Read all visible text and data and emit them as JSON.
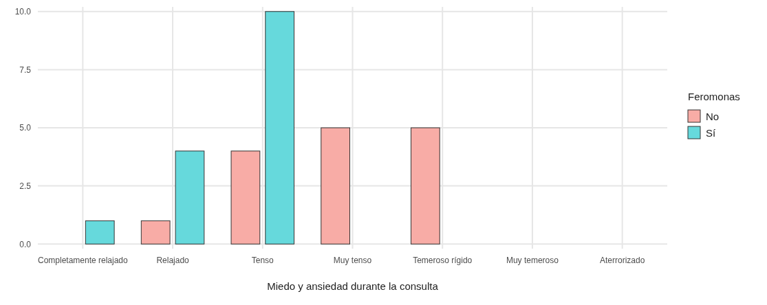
{
  "chart_data": {
    "type": "bar",
    "xlabel": "Miedo y ansiedad durante la consulta",
    "legend_title": "Feromonas",
    "legend": "right",
    "grid": true,
    "categories": [
      "Completamente relajado",
      "Relajado",
      "Tenso",
      "Muy tenso",
      "Temeroso rígido",
      "Muy temeroso",
      "Aterrorizado"
    ],
    "ylim": [
      -0.2,
      10.2
    ],
    "yticks": [
      {
        "value": 0,
        "label": "0.0"
      },
      {
        "value": 2.5,
        "label": "2.5"
      },
      {
        "value": 5,
        "label": "5.0"
      },
      {
        "value": 7.5,
        "label": "7.5"
      },
      {
        "value": 10,
        "label": "10.0"
      }
    ],
    "series": [
      {
        "name": "No",
        "color": "#f8aca6",
        "values": [
          0,
          1,
          4,
          5,
          5,
          0,
          0
        ]
      },
      {
        "name": "Sí",
        "color": "#66d9dc",
        "values": [
          1,
          4,
          10,
          0,
          0,
          0,
          0
        ]
      }
    ]
  }
}
